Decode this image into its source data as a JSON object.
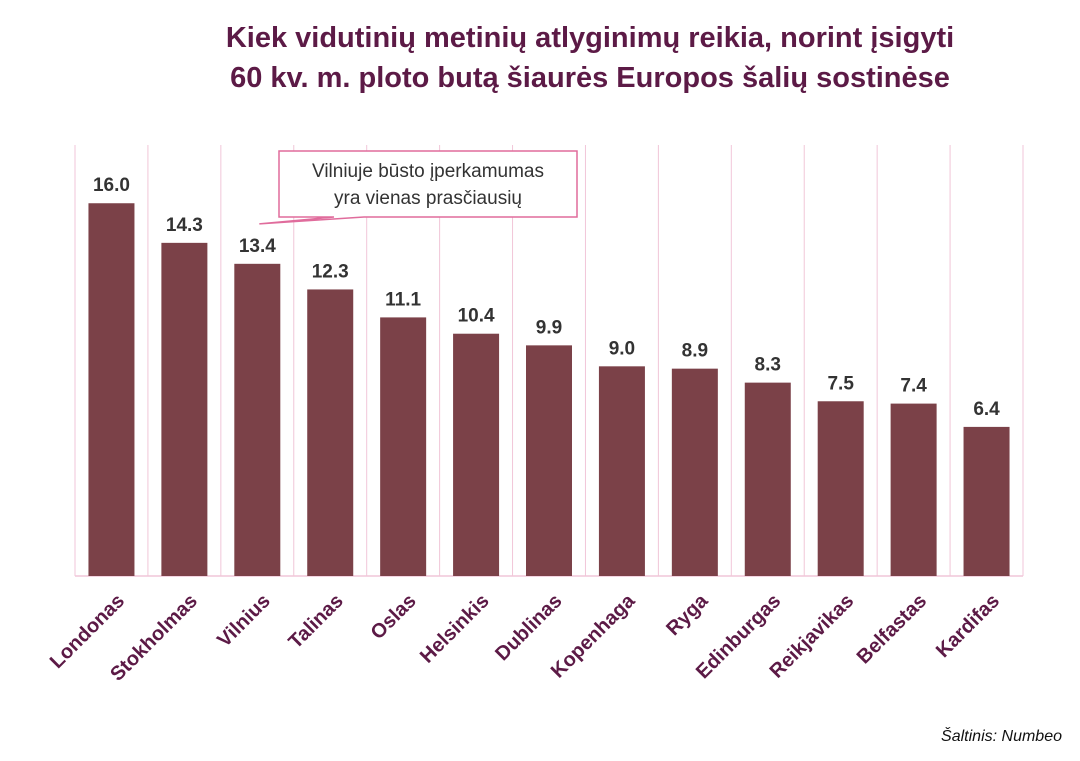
{
  "title_lines": [
    "Kiek vidutinių metinių atlyginimų reikia, norint įsigyti",
    "60 kv. m. ploto butą šiaurės Europos šalių sostinėse"
  ],
  "source": "Šaltinis: Numbeo",
  "colors": {
    "bar": "#7b4148",
    "title": "#5c1a46",
    "grid": "#f1c6d8",
    "callout_border": "#e06c9c"
  },
  "chart_data": {
    "type": "bar",
    "title": "Kiek vidutinių metinių atlyginimų reikia, norint įsigyti 60 kv. m. ploto butą šiaurės Europos šalių sostinėse",
    "xlabel": "",
    "ylabel": "",
    "ylim": [
      0,
      18.5
    ],
    "grid": true,
    "legend": "none",
    "categories": [
      "Londonas",
      "Stokholmas",
      "Vilnius",
      "Talinas",
      "Oslas",
      "Helsinkis",
      "Dublinas",
      "Kopenhaga",
      "Ryga",
      "Edinburgas",
      "Reikjavikas",
      "Belfastas",
      "Kardifas"
    ],
    "values": [
      16.0,
      14.3,
      13.4,
      12.3,
      11.1,
      10.4,
      9.9,
      9.0,
      8.9,
      8.3,
      7.5,
      7.4,
      6.4
    ],
    "value_labels": [
      "16.0",
      "14.3",
      "13.4",
      "12.3",
      "11.1",
      "10.4",
      "9.9",
      "9.0",
      "8.9",
      "8.3",
      "7.5",
      "7.4",
      "6.4"
    ],
    "annotation": {
      "lines": [
        "Vilniuje būsto įperkamumas",
        "yra vienas prasčiausių"
      ],
      "target": "Vilnius"
    }
  }
}
